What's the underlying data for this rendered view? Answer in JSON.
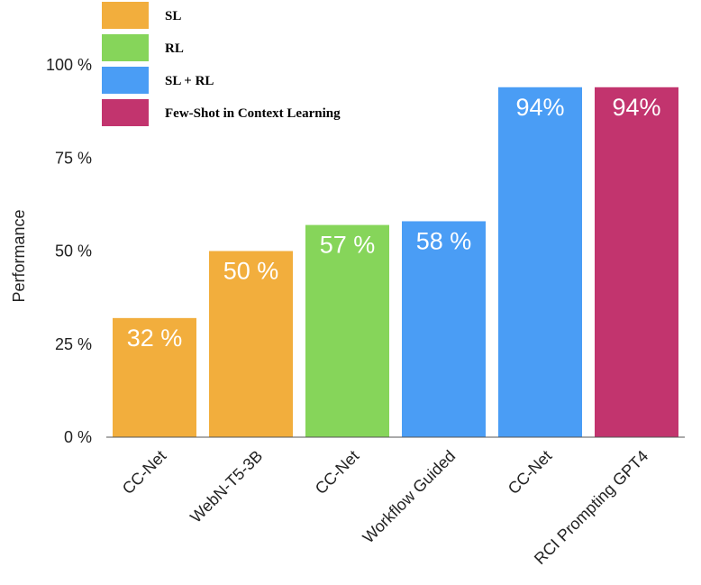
{
  "chart_data": {
    "type": "bar",
    "title": "",
    "xlabel": "",
    "ylabel": "Performance",
    "ylim": [
      0,
      100
    ],
    "yticks": [
      {
        "value": 0,
        "label": "0 %"
      },
      {
        "value": 25,
        "label": "25 %"
      },
      {
        "value": 50,
        "label": "50 %"
      },
      {
        "value": 75,
        "label": "75 %"
      },
      {
        "value": 100,
        "label": "100 %"
      }
    ],
    "grid": false,
    "legend_position": "top-left",
    "legend": [
      {
        "label": "SL",
        "color": "#F2AE3D"
      },
      {
        "label": "RL",
        "color": "#86D55A"
      },
      {
        "label": "SL + RL",
        "color": "#4A9DF5"
      },
      {
        "label": "Few-Shot in Context Learning",
        "color": "#C2346E"
      }
    ],
    "categories": [
      "CC-Net",
      "WebN-T5-3B",
      "CC-Net",
      "Workflow Guided",
      "CC-Net",
      "RCI Prompting GPT4"
    ],
    "values": [
      32,
      50,
      57,
      58,
      94,
      94
    ],
    "data_labels": [
      "32 %",
      "50 %",
      "57 %",
      "58 %",
      "94%",
      "94%"
    ],
    "groups": [
      "SL",
      "SL",
      "RL",
      "SL + RL",
      "SL + RL",
      "Few-Shot in Context Learning"
    ],
    "bar_colors": [
      "#F2AE3D",
      "#F2AE3D",
      "#86D55A",
      "#4A9DF5",
      "#4A9DF5",
      "#C2346E"
    ]
  }
}
